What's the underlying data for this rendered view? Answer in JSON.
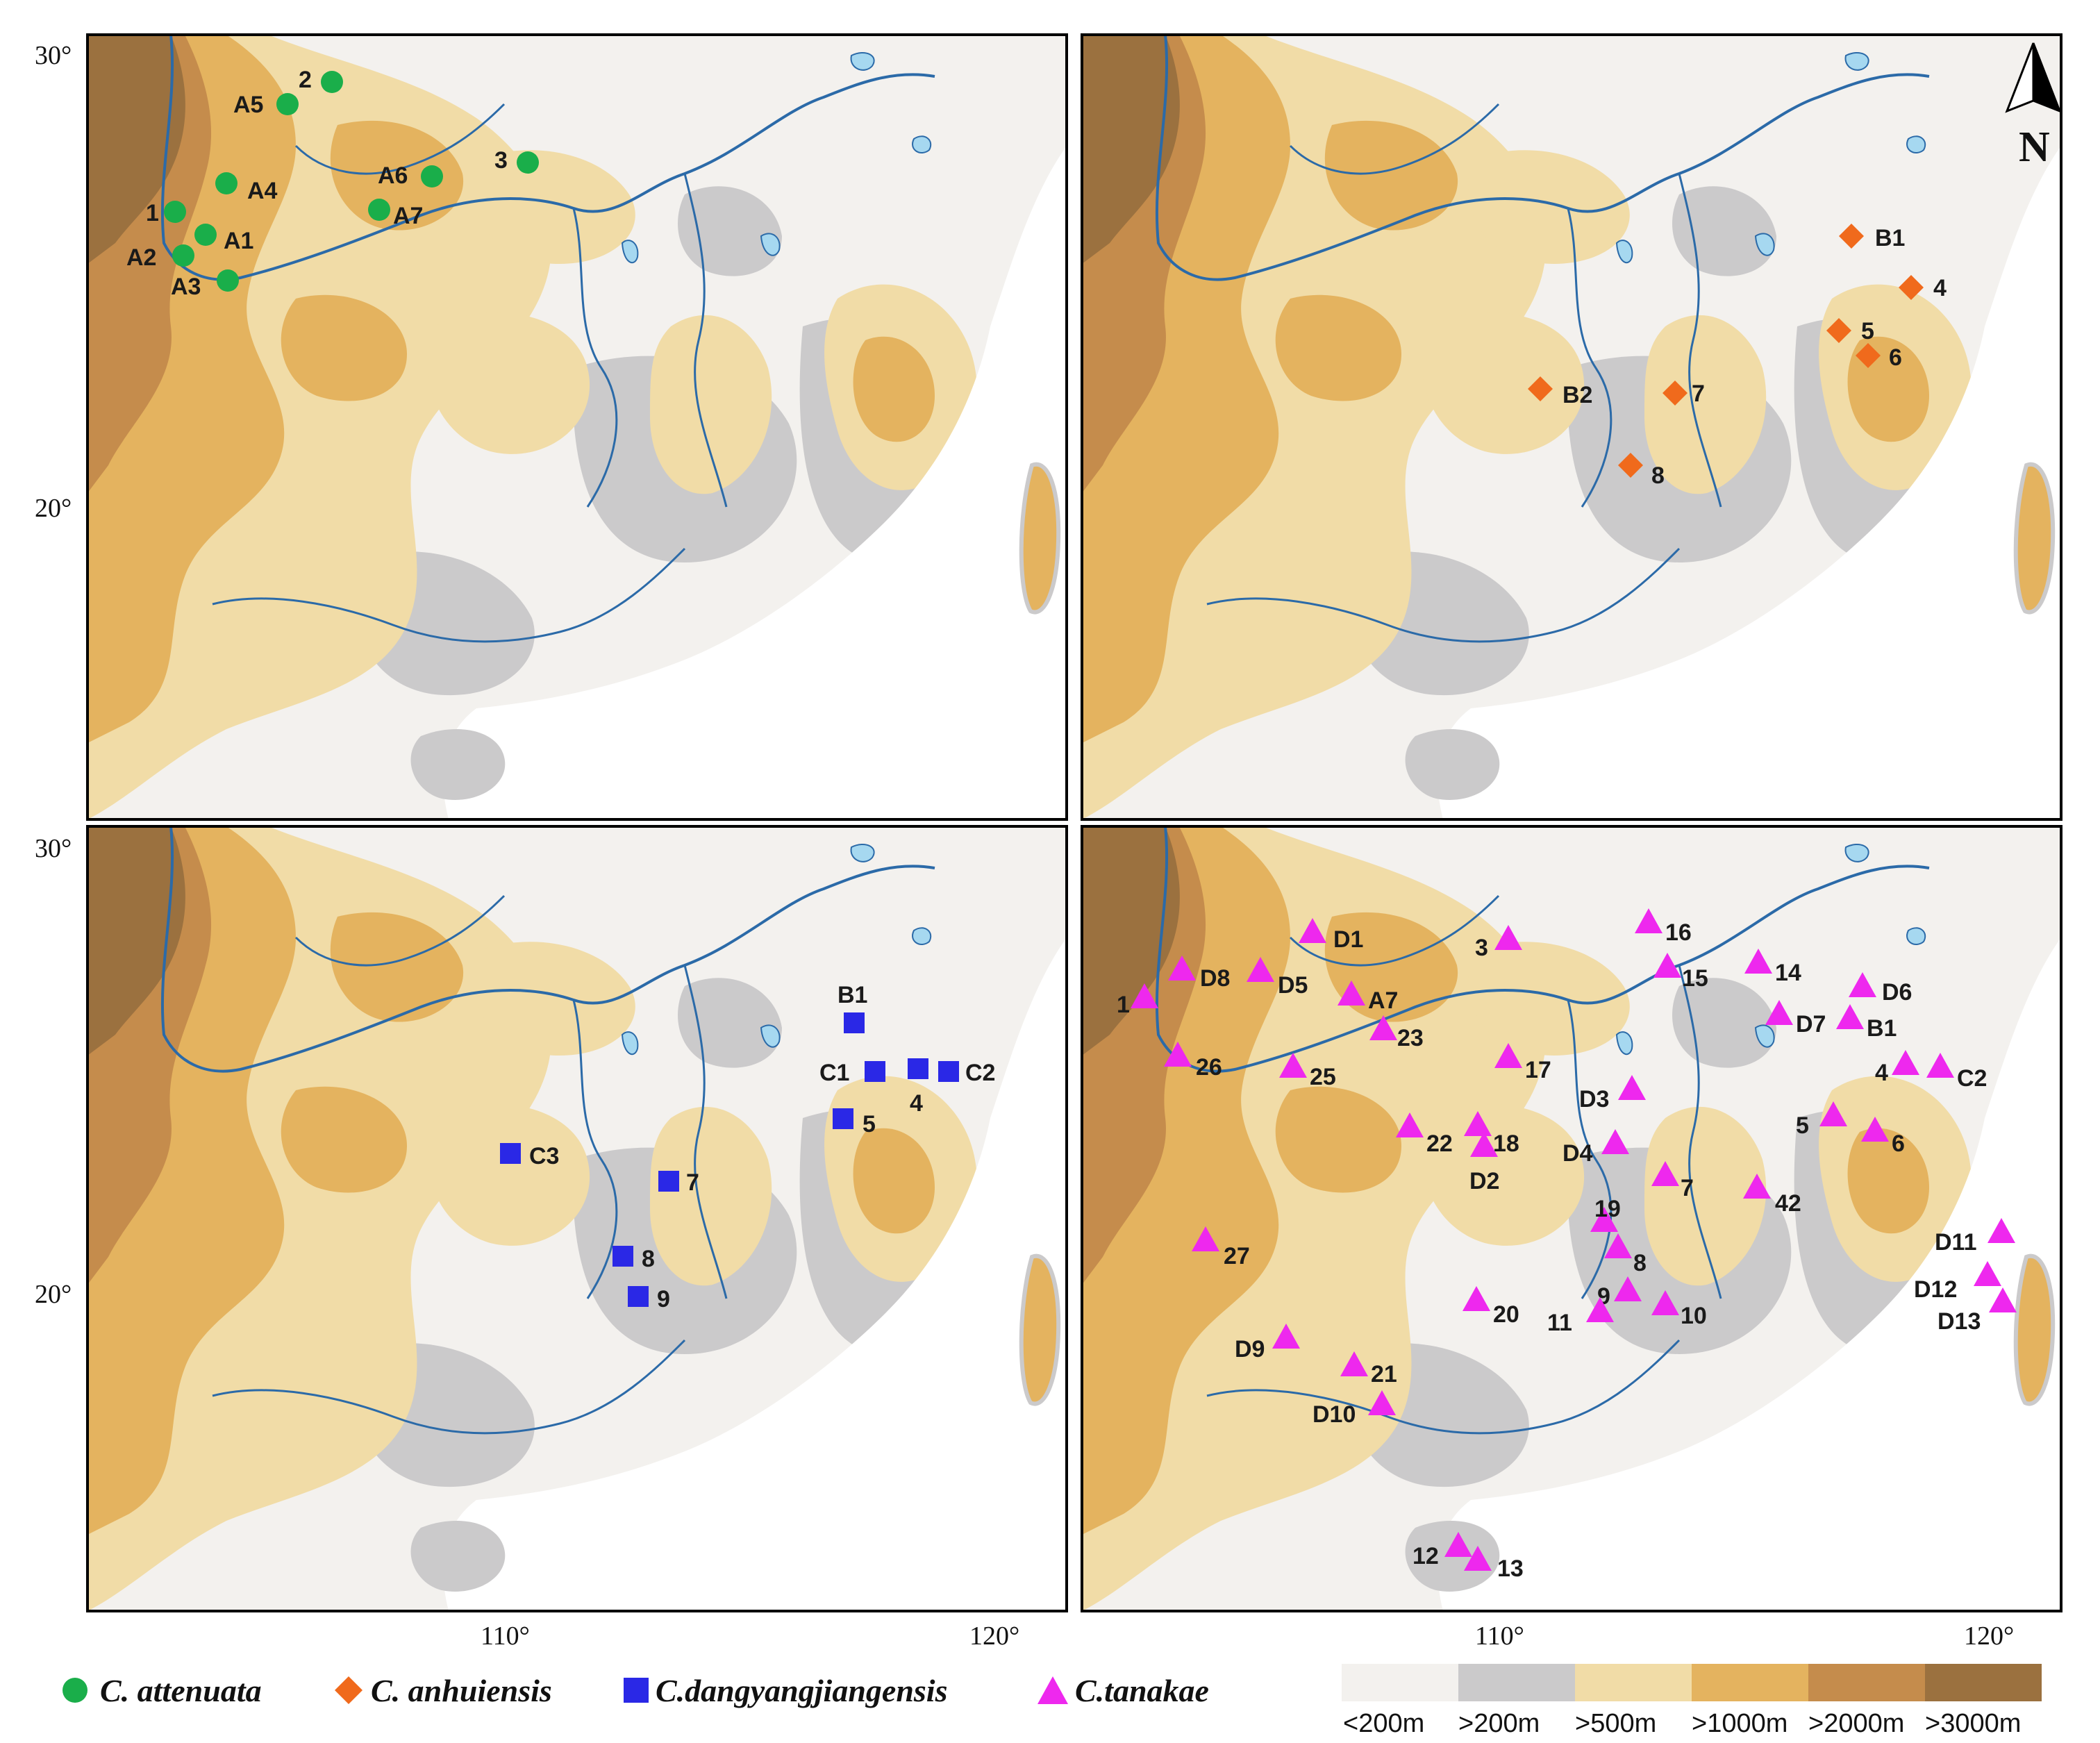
{
  "axes": {
    "lat_labels": [
      "30°",
      "20°",
      "30°",
      "20°"
    ],
    "lon_labels": [
      "110°",
      "120°",
      "110°",
      "120°"
    ]
  },
  "north_arrow": {
    "label": "N"
  },
  "colors": {
    "lt200": "#f3f1ee",
    "gt200": "#cbcacb",
    "gt500": "#f1dca7",
    "gt1000": "#e4b35f",
    "gt2000": "#c58c4c",
    "gt3000": "#9b713f",
    "river": "#2b6aa8",
    "attenuata": "#1aae4a",
    "anhuiensis": "#f06a1c",
    "dangyang": "#2a28e6",
    "tanakae": "#ee28ee"
  },
  "panels": [
    {
      "id": "attenuata",
      "marker": "circle",
      "points": [
        {
          "label": "1"
        },
        {
          "label": "2"
        },
        {
          "label": "3"
        },
        {
          "label": "A1"
        },
        {
          "label": "A2"
        },
        {
          "label": "A3"
        },
        {
          "label": "A4"
        },
        {
          "label": "A5"
        },
        {
          "label": "A6"
        },
        {
          "label": "A7"
        }
      ]
    },
    {
      "id": "anhuiensis",
      "marker": "diamond",
      "points": [
        {
          "label": "B1"
        },
        {
          "label": "4"
        },
        {
          "label": "5"
        },
        {
          "label": "6"
        },
        {
          "label": "B2"
        },
        {
          "label": "7"
        },
        {
          "label": "8"
        }
      ]
    },
    {
      "id": "dangyangjiangensis",
      "marker": "square",
      "points": [
        {
          "label": "B1"
        },
        {
          "label": "C1"
        },
        {
          "label": "4"
        },
        {
          "label": "C2"
        },
        {
          "label": "5"
        },
        {
          "label": "C3"
        },
        {
          "label": "7"
        },
        {
          "label": "8"
        },
        {
          "label": "9"
        }
      ]
    },
    {
      "id": "tanakae",
      "marker": "triangle",
      "points": [
        {
          "label": "D1"
        },
        {
          "label": "3"
        },
        {
          "label": "16"
        },
        {
          "label": "D8"
        },
        {
          "label": "D5"
        },
        {
          "label": "15"
        },
        {
          "label": "14"
        },
        {
          "label": "D6"
        },
        {
          "label": "1"
        },
        {
          "label": "A7"
        },
        {
          "label": "D7"
        },
        {
          "label": "B1"
        },
        {
          "label": "23"
        },
        {
          "label": "26"
        },
        {
          "label": "25"
        },
        {
          "label": "17"
        },
        {
          "label": "4"
        },
        {
          "label": "C2"
        },
        {
          "label": "D3"
        },
        {
          "label": "5"
        },
        {
          "label": "6"
        },
        {
          "label": "22"
        },
        {
          "label": "18"
        },
        {
          "label": "D4"
        },
        {
          "label": "D2"
        },
        {
          "label": "7"
        },
        {
          "label": "42"
        },
        {
          "label": "19"
        },
        {
          "label": "8"
        },
        {
          "label": "27"
        },
        {
          "label": "D11"
        },
        {
          "label": "D12"
        },
        {
          "label": "9"
        },
        {
          "label": "20"
        },
        {
          "label": "11"
        },
        {
          "label": "10"
        },
        {
          "label": "D13"
        },
        {
          "label": "D9"
        },
        {
          "label": "21"
        },
        {
          "label": "D10"
        },
        {
          "label": "12"
        },
        {
          "label": "13"
        }
      ]
    }
  ],
  "legend": {
    "species": [
      {
        "name": "C. attenuata",
        "marker": "circle"
      },
      {
        "name": "C. anhuiensis",
        "marker": "diamond"
      },
      {
        "name": "C.dangyangjiangensis",
        "marker": "square"
      },
      {
        "name": "C.tanakae",
        "marker": "triangle"
      }
    ],
    "elevation": [
      {
        "label": "<200m"
      },
      {
        "label": ">200m"
      },
      {
        "label": ">500m"
      },
      {
        "label": ">1000m"
      },
      {
        "label": ">2000m"
      },
      {
        "label": ">3000m"
      }
    ]
  }
}
